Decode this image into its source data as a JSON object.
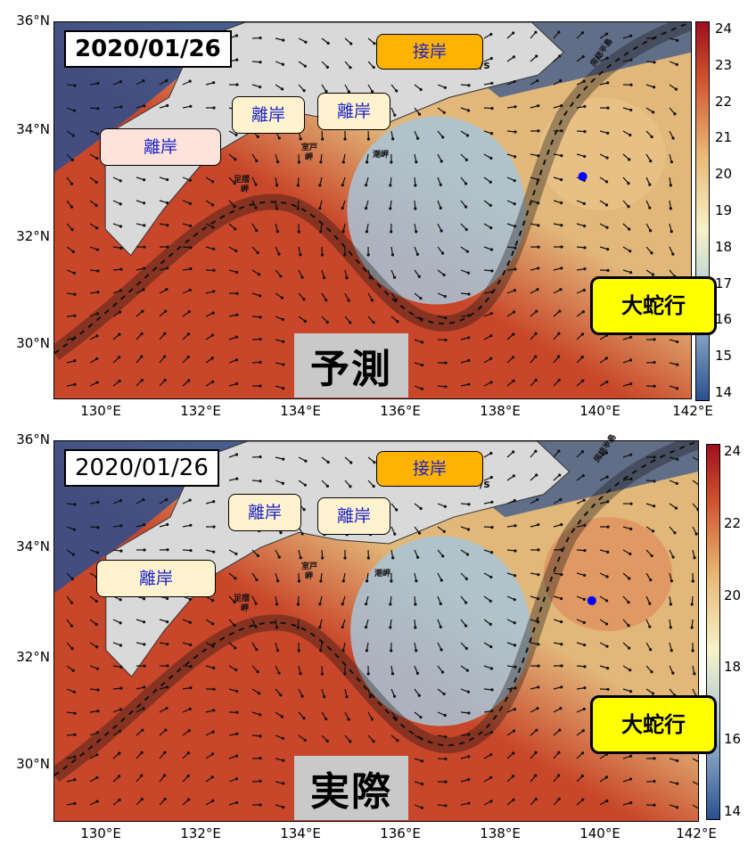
{
  "axes": {
    "lat_labels": [
      "36°N",
      "34°N",
      "32°N",
      "30°N"
    ],
    "lon_labels": [
      "130°E",
      "132°E",
      "134°E",
      "136°E",
      "138°E",
      "140°E",
      "142°E"
    ]
  },
  "panels": [
    {
      "id": "top",
      "date": "2020/01/26",
      "title": "予測",
      "colorbar_ticks": [
        "24",
        "23",
        "22",
        "21",
        "20",
        "19",
        "18",
        "17",
        "16",
        "15",
        "14"
      ],
      "callouts": {
        "rigan_1": "離岸",
        "rigan_2": "離岸",
        "rigan_3": "離岸",
        "setsugan": "接岸",
        "meander": "大蛇行"
      },
      "places": [
        "足摺",
        "岬",
        "室戸",
        "岬",
        "潮岬",
        "房総半島"
      ],
      "unit_fragment": "/s"
    },
    {
      "id": "bottom",
      "date": "2020/01/26",
      "title": "実際",
      "colorbar_ticks": [
        "24",
        "22",
        "20",
        "18",
        "16",
        "14"
      ],
      "callouts": {
        "rigan_1": "離岸",
        "rigan_2": "離岸",
        "rigan_3": "離岸",
        "setsugan": "接岸",
        "meander": "大蛇行"
      },
      "places": [
        "足摺",
        "岬",
        "室戸",
        "岬",
        "潮岬",
        "房総半島"
      ],
      "unit_fragment": "/s"
    }
  ],
  "colors": {
    "warm": "#c8462a",
    "mid": "#e2b77a",
    "cool": "#a8c6d8",
    "deep": "#2b4f8f",
    "land": "#d9d9d9",
    "observation_dot": "#0000ff",
    "callout_yellow": "#ffff00",
    "callout_orange": "#ffb300",
    "callout_cream": "#fff3cf",
    "callout_pink": "#fde3da"
  }
}
